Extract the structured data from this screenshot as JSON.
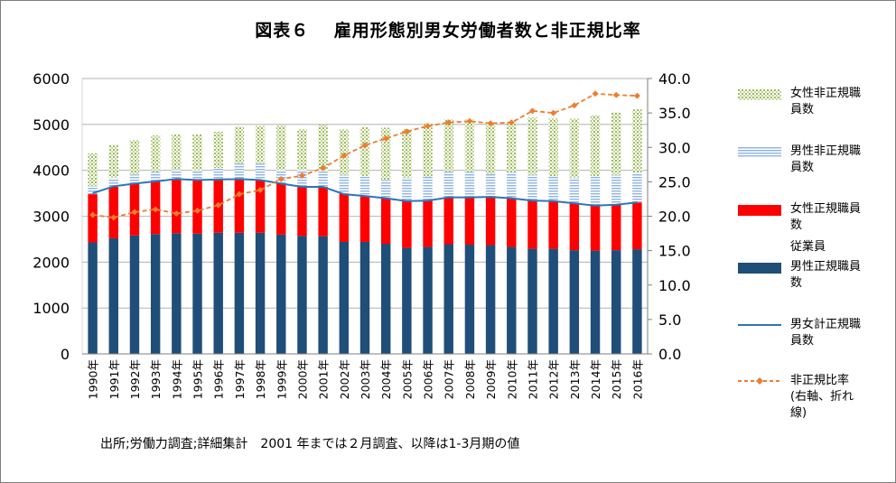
{
  "title": "図表６　 雇用形態別男女労働者数と非正規比率",
  "source": "出所;労働力調査;詳細集計　2001 年までは２月調査、以降は1-3月期の値",
  "legend": {
    "female_nonregular": "女性非正規職\n員数",
    "male_nonregular": "男性非正規職\n員数",
    "female_regular": "女性正規職員\n数",
    "male_regular_note": "従業員",
    "male_regular": "男性正規職員\n数",
    "total_regular": "男女計正規職\n員数",
    "nonregular_ratio": "非正規比率\n(右軸、折れ\n線)"
  },
  "colors": {
    "male_regular": "#1f4e79",
    "female_regular": "#ff0000",
    "male_nonregular": "#9dc3e6",
    "female_nonregular": "#b9c98a",
    "total_line": "#2e75b6",
    "ratio_line": "#ed7d31"
  },
  "chart_data": {
    "type": "bar",
    "stacked": true,
    "categories": [
      "1990年",
      "1991年",
      "1992年",
      "1993年",
      "1994年",
      "1995年",
      "1996年",
      "1997年",
      "1998年",
      "1999年",
      "2000年",
      "2001年",
      "2002年",
      "2003年",
      "2004年",
      "2005年",
      "2006年",
      "2007年",
      "2008年",
      "2009年",
      "2010年",
      "2011年",
      "2012年",
      "2013年",
      "2014年",
      "2015年",
      "2016年"
    ],
    "series": [
      {
        "name": "男性正規職員数",
        "values": [
          2430,
          2520,
          2580,
          2610,
          2630,
          2620,
          2640,
          2640,
          2640,
          2600,
          2570,
          2560,
          2440,
          2440,
          2400,
          2310,
          2330,
          2390,
          2380,
          2370,
          2330,
          2290,
          2290,
          2260,
          2250,
          2260,
          2280
        ]
      },
      {
        "name": "女性正規職員数",
        "values": [
          1050,
          1120,
          1130,
          1150,
          1170,
          1160,
          1160,
          1170,
          1140,
          1110,
          1070,
          1080,
          1050,
          1000,
          990,
          1020,
          1010,
          1030,
          1030,
          1050,
          1060,
          1050,
          1040,
          1020,
          980,
          1000,
          1020
        ]
      },
      {
        "name": "男性非正規職員数",
        "values": [
          180,
          190,
          200,
          210,
          220,
          210,
          250,
          340,
          380,
          300,
          370,
          360,
          410,
          430,
          400,
          510,
          520,
          550,
          560,
          500,
          570,
          560,
          540,
          560,
          640,
          640,
          650
        ]
      },
      {
        "name": "女性非正規職員数",
        "values": [
          710,
          720,
          750,
          790,
          760,
          790,
          790,
          800,
          810,
          970,
          890,
          990,
          1000,
          1070,
          1140,
          1060,
          1170,
          1140,
          1140,
          1090,
          1100,
          1250,
          1270,
          1290,
          1330,
          1360,
          1380
        ]
      },
      {
        "name": "男女計正規職員数",
        "type": "line",
        "values": [
          3500,
          3650,
          3710,
          3760,
          3810,
          3790,
          3800,
          3810,
          3790,
          3710,
          3640,
          3640,
          3480,
          3440,
          3390,
          3330,
          3340,
          3410,
          3410,
          3420,
          3390,
          3340,
          3330,
          3280,
          3230,
          3250,
          3300
        ]
      },
      {
        "name": "非正規比率(右軸、折れ線)",
        "type": "line",
        "axis": "right",
        "values": [
          20.2,
          19.8,
          20.6,
          21.0,
          20.4,
          20.8,
          21.6,
          23.2,
          23.8,
          25.4,
          25.9,
          27.0,
          28.8,
          30.3,
          31.3,
          32.3,
          33.1,
          33.6,
          33.8,
          33.5,
          33.6,
          35.3,
          35.0,
          36.1,
          37.8,
          37.6,
          37.5
        ]
      }
    ],
    "ylim": [
      0,
      6000
    ],
    "yticks": [
      "0",
      "1000",
      "2000",
      "3000",
      "4000",
      "5000",
      "6000"
    ],
    "y2lim": [
      0,
      40
    ],
    "y2ticks": [
      "0.0",
      "5.0",
      "10.0",
      "15.0",
      "20.0",
      "25.0",
      "30.0",
      "35.0",
      "40.0"
    ],
    "grid": true,
    "legend_position": "right"
  }
}
